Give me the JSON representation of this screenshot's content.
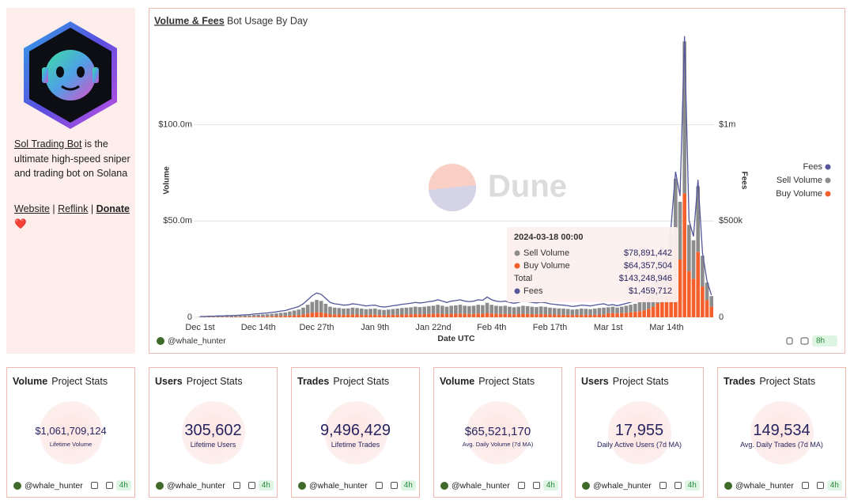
{
  "sidebar": {
    "name": "Sol Trading Bot",
    "description": "is the ultimate high-speed sniper and trading bot on Solana",
    "links": [
      "Website",
      "Reflink",
      "Donate"
    ],
    "separator": "|",
    "heart": "❤️"
  },
  "panel": {
    "tab": "Volume & Fees",
    "subtitle": "Bot Usage By Day",
    "watermark": "Dune",
    "author": "@whale_hunter",
    "age": "8h",
    "tooltip": {
      "title": "2024-03-18 00:00",
      "rows": [
        {
          "label": "Sell Volume",
          "value": "$78,891,442",
          "color": "#8c8c8c"
        },
        {
          "label": "Buy Volume",
          "value": "$64,357,504",
          "color": "#f4602c"
        },
        {
          "label": "Total",
          "value": "$143,248,946"
        },
        {
          "label": "Fees",
          "value": "$1,459,712",
          "color": "#55579a"
        }
      ]
    }
  },
  "chart_data": {
    "type": "bar",
    "stacked": true,
    "legend": "right",
    "grid": true,
    "xlabel": "Date UTC",
    "ylabel": "Volume",
    "y2label": "Fees",
    "categories": [
      "Dec 1st",
      null,
      null,
      null,
      null,
      null,
      null,
      null,
      null,
      null,
      null,
      null,
      null,
      "Dec 14th",
      null,
      null,
      null,
      null,
      null,
      null,
      null,
      null,
      null,
      null,
      null,
      null,
      "Dec 27th",
      null,
      null,
      null,
      null,
      null,
      null,
      null,
      null,
      null,
      null,
      null,
      null,
      "Jan 9th",
      null,
      null,
      null,
      null,
      null,
      null,
      null,
      null,
      null,
      null,
      null,
      null,
      "Jan 22nd",
      null,
      null,
      null,
      null,
      null,
      null,
      null,
      null,
      null,
      null,
      null,
      null,
      "Feb 4th",
      null,
      null,
      null,
      null,
      null,
      null,
      null,
      null,
      null,
      null,
      null,
      null,
      "Feb 17th",
      null,
      null,
      null,
      null,
      null,
      null,
      null,
      null,
      null,
      null,
      null,
      null,
      "Mar 1st",
      null,
      null,
      null,
      null,
      null,
      null,
      null,
      null,
      null,
      null,
      null,
      null,
      "Mar 14th",
      null,
      null,
      null,
      null,
      null,
      null,
      null,
      null,
      null,
      null
    ],
    "ylim": [
      0,
      150000000
    ],
    "yticks": [
      0,
      {
        "value": 50000000,
        "label": "$50.0m"
      },
      {
        "value": 100000000,
        "label": "$100.0m"
      }
    ],
    "y2lim": [
      0,
      1500000
    ],
    "y2ticks": [
      0,
      {
        "value": 500000,
        "label": "$500k"
      },
      {
        "value": 1000000,
        "label": "$1m"
      }
    ],
    "series": [
      {
        "name": "Fees",
        "color": "#55579a",
        "type": "line",
        "axis": "y2",
        "values": [
          4200,
          4200,
          5600,
          5600,
          7000,
          7000,
          8400,
          8400,
          9800,
          11200,
          12600,
          14000,
          16800,
          18200,
          21000,
          22400,
          25200,
          28000,
          32200,
          35000,
          42000,
          49000,
          56000,
          70000,
          91000,
          112000,
          126000,
          119000,
          98000,
          77000,
          70000,
          67200,
          63000,
          64400,
          70000,
          67200,
          63000,
          58800,
          61600,
          63000,
          56000,
          53200,
          56000,
          60200,
          63000,
          67200,
          70000,
          72800,
          77000,
          74200,
          77000,
          81200,
          84000,
          91000,
          84000,
          77000,
          84000,
          86800,
          91000,
          84000,
          81200,
          84000,
          91000,
          88200,
          105000,
          91000,
          84000,
          81200,
          84000,
          77000,
          72800,
          77000,
          84000,
          81200,
          77000,
          74200,
          78400,
          75600,
          70000,
          67200,
          64400,
          63000,
          60200,
          56000,
          58800,
          63000,
          61600,
          58800,
          63000,
          67200,
          70000,
          62400,
          66000,
          60000,
          66000,
          72000,
          78000,
          84000,
          96000,
          108000,
          132000,
          168000,
          216000,
          288000,
          315000,
          472500,
          756000,
          630000,
          1459712,
          504000,
          420000,
          714000,
          336000,
          189000,
          115500
        ]
      },
      {
        "name": "Sell Volume",
        "color": "#8c8c8c",
        "values": [
          210000,
          210000,
          280000,
          280000,
          350000,
          350000,
          420000,
          420000,
          490000,
          560000,
          630000,
          700000,
          840000,
          910000,
          1050000,
          1120000,
          1260000,
          1400000,
          1610000,
          1750000,
          2100000,
          2450000,
          2800000,
          3500000,
          4550000,
          5600000,
          6300000,
          5950000,
          4900000,
          3850000,
          3500000,
          3360000,
          3150000,
          3220000,
          3500000,
          3360000,
          3150000,
          2940000,
          3080000,
          3150000,
          2800000,
          2660000,
          2800000,
          3010000,
          3150000,
          3360000,
          3500000,
          3640000,
          3850000,
          3710000,
          3850000,
          4060000,
          4200000,
          4550000,
          4200000,
          3850000,
          4200000,
          4340000,
          4550000,
          4200000,
          4060000,
          4200000,
          4550000,
          4410000,
          5250000,
          4550000,
          4200000,
          4060000,
          4200000,
          3850000,
          3640000,
          3850000,
          4200000,
          4060000,
          3850000,
          3710000,
          3920000,
          3780000,
          3500000,
          3360000,
          3220000,
          3150000,
          3010000,
          2800000,
          2940000,
          3150000,
          3080000,
          2940000,
          3150000,
          3360000,
          3500000,
          3120000,
          3300000,
          3000000,
          3300000,
          3600000,
          3900000,
          4200000,
          4800000,
          5400000,
          6600000,
          8400000,
          10800000,
          14400000,
          15000000,
          22500000,
          36000000,
          30000000,
          78891442,
          24000000,
          20000000,
          34000000,
          16000000,
          9000000,
          5500000
        ]
      },
      {
        "name": "Buy Volume",
        "color": "#f4602c",
        "values": [
          90000,
          90000,
          120000,
          120000,
          150000,
          150000,
          180000,
          180000,
          210000,
          240000,
          270000,
          300000,
          360000,
          390000,
          450000,
          480000,
          540000,
          600000,
          690000,
          750000,
          900000,
          1050000,
          1200000,
          1500000,
          1950000,
          2400000,
          2700000,
          2550000,
          2100000,
          1650000,
          1500000,
          1440000,
          1350000,
          1380000,
          1500000,
          1440000,
          1350000,
          1260000,
          1320000,
          1350000,
          1200000,
          1140000,
          1200000,
          1290000,
          1350000,
          1440000,
          1500000,
          1560000,
          1650000,
          1590000,
          1650000,
          1740000,
          1800000,
          1950000,
          1800000,
          1650000,
          1800000,
          1860000,
          1950000,
          1800000,
          1740000,
          1800000,
          1950000,
          1890000,
          2250000,
          1950000,
          1800000,
          1740000,
          1800000,
          1650000,
          1560000,
          1650000,
          1800000,
          1740000,
          1650000,
          1590000,
          1680000,
          1620000,
          1500000,
          1440000,
          1380000,
          1350000,
          1290000,
          1200000,
          1260000,
          1350000,
          1320000,
          1260000,
          1350000,
          1440000,
          1500000,
          2080000,
          2200000,
          2000000,
          2200000,
          2400000,
          2600000,
          2800000,
          3200000,
          3600000,
          4400000,
          5600000,
          7200000,
          9600000,
          15000000,
          22500000,
          36000000,
          30000000,
          64357504,
          24000000,
          20000000,
          34000000,
          16000000,
          9000000,
          5500000
        ]
      }
    ]
  },
  "stats": [
    {
      "title": "Volume",
      "subtitle": "Project Stats",
      "value": "$1,061,709,124",
      "caption": "Lifetime Volume",
      "author": "@whale_hunter",
      "age": "4h"
    },
    {
      "title": "Users",
      "subtitle": "Project Stats",
      "value": "305,602",
      "caption": "Lifetime Users",
      "author": "@whale_hunter",
      "age": "4h"
    },
    {
      "title": "Trades",
      "subtitle": "Project Stats",
      "value": "9,496,429",
      "caption": "Lifetime Trades",
      "author": "@whale_hunter",
      "age": "4h"
    },
    {
      "title": "Volume",
      "subtitle": "Project Stats",
      "value": "$65,521,170",
      "caption": "Avg. Daily Volume (7d MA)",
      "author": "@whale_hunter",
      "age": "4h"
    },
    {
      "title": "Users",
      "subtitle": "Project Stats",
      "value": "17,955",
      "caption": "Daily Active Users (7d MA)",
      "author": "@whale_hunter",
      "age": "4h"
    },
    {
      "title": "Trades",
      "subtitle": "Project Stats",
      "value": "149,534",
      "caption": "Avg. Daily Trades (7d MA)",
      "author": "@whale_hunter",
      "age": "4h"
    }
  ]
}
